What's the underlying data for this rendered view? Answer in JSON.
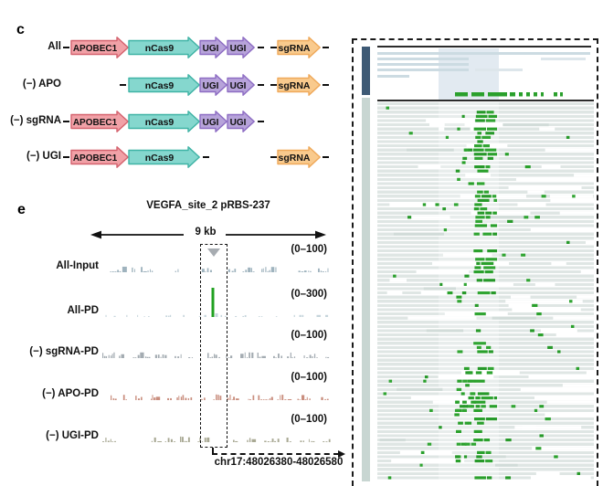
{
  "figure": {
    "panel_c": {
      "label": "c",
      "arrow_colors": {
        "APOBEC1": {
          "fill": "#f1a1a7",
          "stroke": "#d4626e"
        },
        "nCas9": {
          "fill": "#85d7ce",
          "stroke": "#3fb3a5"
        },
        "UGI": {
          "fill": "#b7a3da",
          "stroke": "#8d6cc3"
        },
        "sgRNA": {
          "fill": "#f9ca8d",
          "stroke": "#efa95a"
        }
      },
      "arrow_labels": {
        "APOBEC1": "APOBEC1",
        "nCas9": "nCas9",
        "UGI-1": "UGI",
        "UGI-2": "UGI",
        "sgRNA": "sgRNA"
      },
      "rows": [
        {
          "name": "All",
          "parts": [
            "dash-pre-apobec",
            "APOBEC1",
            "nCas9",
            "UGI-1",
            "UGI-2",
            "dash-post-ugi",
            "dash-pre-sgrna",
            "sgRNA",
            "dash-post-sgrna"
          ]
        },
        {
          "name": "(−) APO",
          "parts": [
            "dash-pre-ncas9",
            "nCas9",
            "UGI-1",
            "UGI-2",
            "dash-post-ugi",
            "dash-pre-sgrna",
            "sgRNA",
            "dash-post-sgrna"
          ]
        },
        {
          "name": "(−) sgRNA",
          "parts": [
            "dash-pre-apobec",
            "APOBEC1",
            "nCas9",
            "UGI-1",
            "UGI-2",
            "dash-post-ugi"
          ]
        },
        {
          "name": "(−) UGI",
          "parts": [
            "dash-pre-apobec",
            "APOBEC1",
            "nCas9",
            "dash-post-ncas9",
            "dash-pre-sgrna",
            "sgRNA",
            "dash-post-sgrna"
          ]
        }
      ]
    },
    "panel_e": {
      "label": "e",
      "title": "VEGFA_site_2 pRBS-237",
      "scale_label": "9 kb",
      "region_label": "chr17:48026380-48026580",
      "peak_color": "#21a121",
      "tracks": [
        {
          "label": "All-Input",
          "range": "(0–100)",
          "signal_color": "#9fb3be",
          "style": "dense"
        },
        {
          "label": "All-PD",
          "range": "(0–300)",
          "signal_color": "#c6d5dc",
          "style": "peak"
        },
        {
          "label": "(−) sgRNA-PD",
          "range": "(0–100)",
          "signal_color": "#a4acb2",
          "style": "dense"
        },
        {
          "label": "(−) APO-PD",
          "range": "(0–100)",
          "signal_color": "#c98e7e",
          "style": "dense"
        },
        {
          "label": "(−) UGI-PD",
          "range": "(0–100)",
          "signal_color": "#a9a994",
          "style": "dense"
        }
      ]
    },
    "igv": {
      "mark_color": "#2aa02c",
      "mark_color_variants": [
        "#2aa02c",
        "#31a533",
        "#27992a"
      ],
      "navy_bar_color": "#3e5a75",
      "side_bar_color": "#c8d6d2",
      "read_row_color": "#dfe6e4",
      "coverage_read_color": "#ccdbe2",
      "coverage_read_light_color": "#dde6eb",
      "highlight_color": "#e2eaf1",
      "separator_color": "#2b2b2b"
    }
  }
}
